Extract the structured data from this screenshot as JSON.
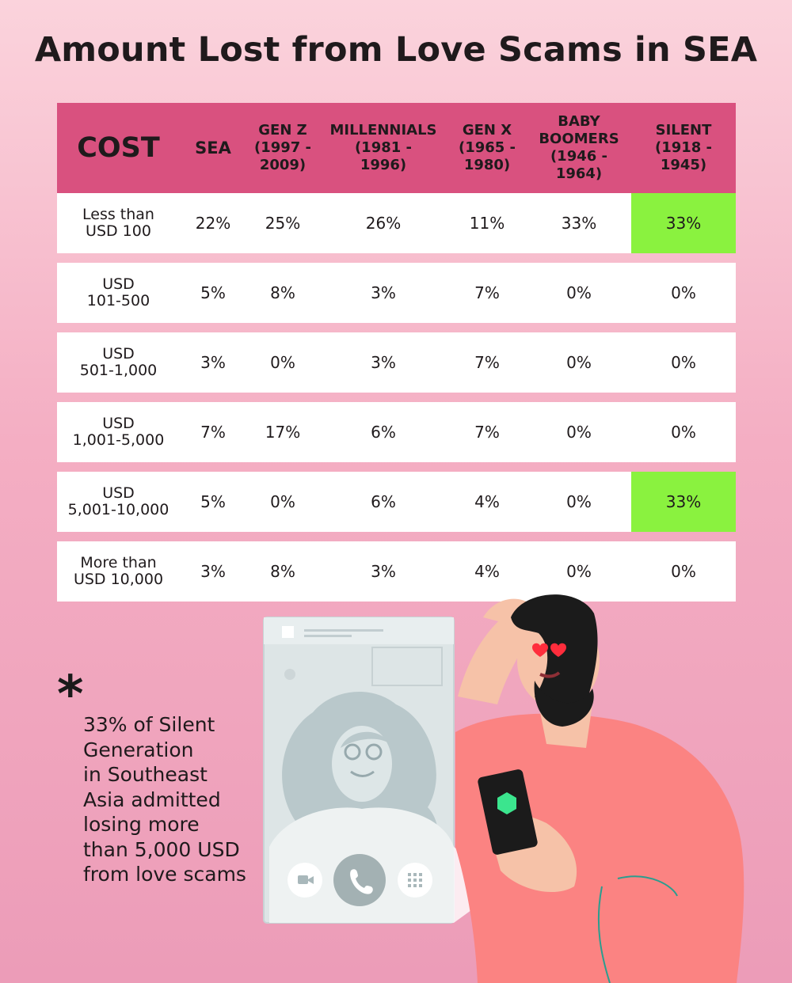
{
  "title": "Amount Lost from Love Scams in SEA",
  "colors": {
    "header": "#d9517f",
    "highlight": "#8af23f",
    "row": "#ffffff",
    "background": "#f4aec3"
  },
  "chart_data": {
    "type": "table",
    "title": "Amount Lost from Love Scams in SEA",
    "columns": [
      "COST",
      "SEA",
      "GEN Z\n(1997 -\n2009)",
      "MILLENNIALS\n(1981 -\n1996)",
      "GEN X\n(1965 -\n1980)",
      "BABY\nBOOMERS\n(1946 -\n1964)",
      "SILENT\n(1918 -\n1945)"
    ],
    "rows": [
      {
        "label": "Less than\nUSD 100",
        "values": [
          "22%",
          "25%",
          "26%",
          "11%",
          "33%",
          "33%"
        ],
        "highlight_col": 5
      },
      {
        "label": "USD\n101-500",
        "values": [
          "5%",
          "8%",
          "3%",
          "7%",
          "0%",
          "0%"
        ]
      },
      {
        "label": "USD\n501-1,000",
        "values": [
          "3%",
          "0%",
          "3%",
          "7%",
          "0%",
          "0%"
        ]
      },
      {
        "label": "USD\n1,001-5,000",
        "values": [
          "7%",
          "17%",
          "6%",
          "7%",
          "0%",
          "0%"
        ]
      },
      {
        "label": "USD\n5,001-10,000",
        "values": [
          "5%",
          "0%",
          "6%",
          "4%",
          "0%",
          "33%"
        ],
        "highlight_col": 5
      },
      {
        "label": "More than\nUSD 10,000",
        "values": [
          "3%",
          "8%",
          "3%",
          "4%",
          "0%",
          "0%"
        ]
      }
    ]
  },
  "note": {
    "asterisk": "*",
    "text": "33% of Silent\nGeneration\nin Southeast\nAsia admitted\nlosing more\nthan 5,000 USD\nfrom love scams"
  },
  "illustration": {
    "phone_icon": "phone-call-icon",
    "video_icon": "video-camera-icon",
    "keypad_icon": "keypad-icon"
  }
}
